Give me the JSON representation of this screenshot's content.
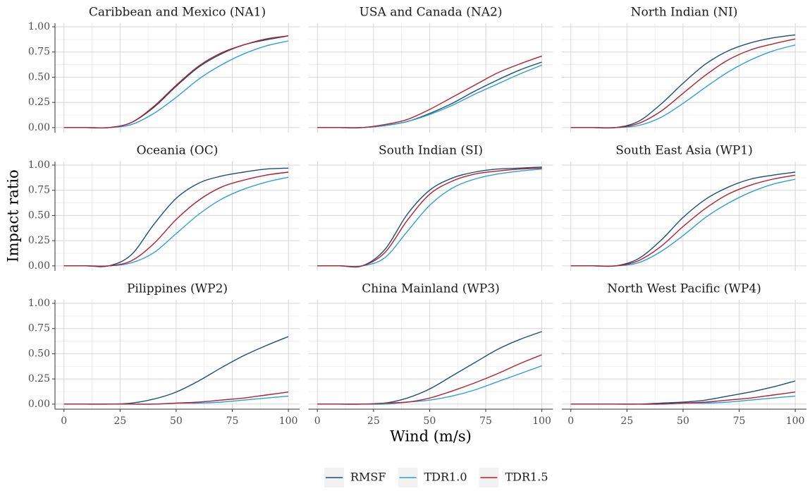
{
  "xlabel": "Wind (m/s)",
  "ylabel": "Impact ratio",
  "xlim": [
    -4,
    105
  ],
  "xticks": [
    0,
    25,
    50,
    75,
    100
  ],
  "ylim": [
    -0.05,
    1.035
  ],
  "yticks": [
    {
      "value": 0,
      "label": "0.00"
    },
    {
      "value": 0.25,
      "label": "0.25"
    },
    {
      "value": 0.5,
      "label": "0.50"
    },
    {
      "value": 0.75,
      "label": "0.75"
    },
    {
      "value": 1,
      "label": "1.00"
    }
  ],
  "grid": true,
  "legend_position": "bottom",
  "chart_data": [
    {
      "type": "line",
      "title": "Caribbean and Mexico (NA1)",
      "x": [
        0,
        10,
        20,
        30,
        40,
        50,
        60,
        70,
        80,
        90,
        100
      ],
      "series": [
        {
          "name": "RMSF",
          "color": "#1d4e74",
          "values": [
            0,
            0,
            0,
            0.05,
            0.2,
            0.41,
            0.6,
            0.73,
            0.82,
            0.87,
            0.91
          ]
        },
        {
          "name": "TDR1.0",
          "color": "#2aa0d8",
          "values": [
            0,
            0,
            0,
            0.03,
            0.14,
            0.3,
            0.48,
            0.62,
            0.73,
            0.81,
            0.86
          ]
        },
        {
          "name": "TDR1.5",
          "color": "#b2202e",
          "values": [
            0,
            0,
            0,
            0.05,
            0.21,
            0.42,
            0.61,
            0.74,
            0.82,
            0.88,
            0.91
          ]
        }
      ]
    },
    {
      "type": "line",
      "title": "USA and Canada (NA2)",
      "x": [
        0,
        10,
        20,
        30,
        40,
        50,
        60,
        70,
        80,
        90,
        100
      ],
      "series": [
        {
          "name": "RMSF",
          "color": "#1d4e74",
          "values": [
            0,
            0,
            0,
            0.02,
            0.06,
            0.14,
            0.24,
            0.36,
            0.47,
            0.57,
            0.65
          ]
        },
        {
          "name": "TDR1.0",
          "color": "#2aa0d8",
          "values": [
            0,
            0,
            0,
            0.02,
            0.06,
            0.13,
            0.22,
            0.33,
            0.43,
            0.53,
            0.62
          ]
        },
        {
          "name": "TDR1.5",
          "color": "#b2202e",
          "values": [
            0,
            0,
            0,
            0.03,
            0.08,
            0.18,
            0.3,
            0.42,
            0.54,
            0.63,
            0.71
          ]
        }
      ]
    },
    {
      "type": "line",
      "title": "North Indian (NI)",
      "x": [
        0,
        10,
        20,
        30,
        40,
        50,
        60,
        70,
        80,
        90,
        100
      ],
      "series": [
        {
          "name": "RMSF",
          "color": "#1d4e74",
          "values": [
            0,
            0,
            0,
            0.06,
            0.23,
            0.44,
            0.63,
            0.76,
            0.84,
            0.89,
            0.92
          ]
        },
        {
          "name": "TDR1.0",
          "color": "#2aa0d8",
          "values": [
            0,
            0,
            0,
            0.02,
            0.1,
            0.24,
            0.4,
            0.55,
            0.67,
            0.76,
            0.82
          ]
        },
        {
          "name": "TDR1.5",
          "color": "#b2202e",
          "values": [
            0,
            0,
            0,
            0.04,
            0.16,
            0.34,
            0.52,
            0.67,
            0.77,
            0.83,
            0.88
          ]
        }
      ]
    },
    {
      "type": "line",
      "title": "Oceania (OC)",
      "x": [
        0,
        10,
        20,
        30,
        40,
        50,
        60,
        70,
        80,
        90,
        100
      ],
      "series": [
        {
          "name": "RMSF",
          "color": "#1d4e74",
          "values": [
            0,
            0,
            0,
            0.11,
            0.41,
            0.67,
            0.82,
            0.89,
            0.93,
            0.96,
            0.97
          ]
        },
        {
          "name": "TDR1.0",
          "color": "#2aa0d8",
          "values": [
            0,
            0,
            0,
            0.03,
            0.13,
            0.32,
            0.51,
            0.66,
            0.76,
            0.83,
            0.88
          ]
        },
        {
          "name": "TDR1.5",
          "color": "#b2202e",
          "values": [
            0,
            0,
            0,
            0.05,
            0.22,
            0.46,
            0.65,
            0.78,
            0.85,
            0.9,
            0.93
          ]
        }
      ]
    },
    {
      "type": "line",
      "title": "South Indian (SI)",
      "x": [
        0,
        10,
        20,
        30,
        40,
        50,
        60,
        70,
        80,
        90,
        100
      ],
      "series": [
        {
          "name": "RMSF",
          "color": "#1d4e74",
          "values": [
            0,
            0,
            0,
            0.16,
            0.51,
            0.75,
            0.87,
            0.93,
            0.96,
            0.97,
            0.98
          ]
        },
        {
          "name": "TDR1.0",
          "color": "#2aa0d8",
          "values": [
            0,
            0,
            0,
            0.08,
            0.34,
            0.6,
            0.77,
            0.86,
            0.91,
            0.94,
            0.96
          ]
        },
        {
          "name": "TDR1.5",
          "color": "#b2202e",
          "values": [
            0,
            0,
            0,
            0.13,
            0.45,
            0.71,
            0.84,
            0.91,
            0.94,
            0.96,
            0.97
          ]
        }
      ]
    },
    {
      "type": "line",
      "title": "South East Asia (WP1)",
      "x": [
        0,
        10,
        20,
        30,
        40,
        50,
        60,
        70,
        80,
        90,
        100
      ],
      "series": [
        {
          "name": "RMSF",
          "color": "#1d4e74",
          "values": [
            0,
            0,
            0,
            0.07,
            0.25,
            0.48,
            0.66,
            0.78,
            0.86,
            0.9,
            0.93
          ]
        },
        {
          "name": "TDR1.0",
          "color": "#2aa0d8",
          "values": [
            0,
            0,
            0,
            0.03,
            0.14,
            0.3,
            0.48,
            0.62,
            0.73,
            0.81,
            0.86
          ]
        },
        {
          "name": "TDR1.5",
          "color": "#b2202e",
          "values": [
            0,
            0,
            0,
            0.05,
            0.19,
            0.39,
            0.57,
            0.71,
            0.8,
            0.86,
            0.9
          ]
        }
      ]
    },
    {
      "type": "line",
      "title": "Pilippines (WP2)",
      "x": [
        0,
        10,
        20,
        30,
        40,
        50,
        60,
        70,
        80,
        90,
        100
      ],
      "series": [
        {
          "name": "RMSF",
          "color": "#1d4e74",
          "values": [
            0,
            0,
            0,
            0.01,
            0.05,
            0.12,
            0.23,
            0.36,
            0.48,
            0.58,
            0.67
          ]
        },
        {
          "name": "TDR1.0",
          "color": "#2aa0d8",
          "values": [
            0,
            0,
            0,
            0,
            0,
            0.01,
            0.01,
            0.02,
            0.04,
            0.06,
            0.08
          ]
        },
        {
          "name": "TDR1.5",
          "color": "#b2202e",
          "values": [
            0,
            0,
            0,
            0,
            0,
            0.01,
            0.02,
            0.04,
            0.06,
            0.09,
            0.12
          ]
        }
      ]
    },
    {
      "type": "line",
      "title": "China Mainland (WP3)",
      "x": [
        0,
        10,
        20,
        30,
        40,
        50,
        60,
        70,
        80,
        90,
        100
      ],
      "series": [
        {
          "name": "RMSF",
          "color": "#1d4e74",
          "values": [
            0,
            0,
            0,
            0.01,
            0.06,
            0.15,
            0.28,
            0.41,
            0.54,
            0.64,
            0.72
          ]
        },
        {
          "name": "TDR1.0",
          "color": "#2aa0d8",
          "values": [
            0,
            0,
            0,
            0,
            0.02,
            0.04,
            0.08,
            0.14,
            0.22,
            0.3,
            0.38
          ]
        },
        {
          "name": "TDR1.5",
          "color": "#b2202e",
          "values": [
            0,
            0,
            0,
            0.01,
            0.02,
            0.06,
            0.13,
            0.21,
            0.3,
            0.4,
            0.49
          ]
        }
      ]
    },
    {
      "type": "line",
      "title": "North West Pacific (WP4)",
      "x": [
        0,
        10,
        20,
        30,
        40,
        50,
        60,
        70,
        80,
        90,
        100
      ],
      "series": [
        {
          "name": "RMSF",
          "color": "#1d4e74",
          "values": [
            0,
            0,
            0,
            0,
            0.01,
            0.02,
            0.04,
            0.08,
            0.12,
            0.17,
            0.23
          ]
        },
        {
          "name": "TDR1.0",
          "color": "#2aa0d8",
          "values": [
            0,
            0,
            0,
            0,
            0,
            0.01,
            0.01,
            0.02,
            0.04,
            0.06,
            0.08
          ]
        },
        {
          "name": "TDR1.5",
          "color": "#b2202e",
          "values": [
            0,
            0,
            0,
            0,
            0,
            0.01,
            0.02,
            0.04,
            0.06,
            0.09,
            0.12
          ]
        }
      ]
    }
  ]
}
